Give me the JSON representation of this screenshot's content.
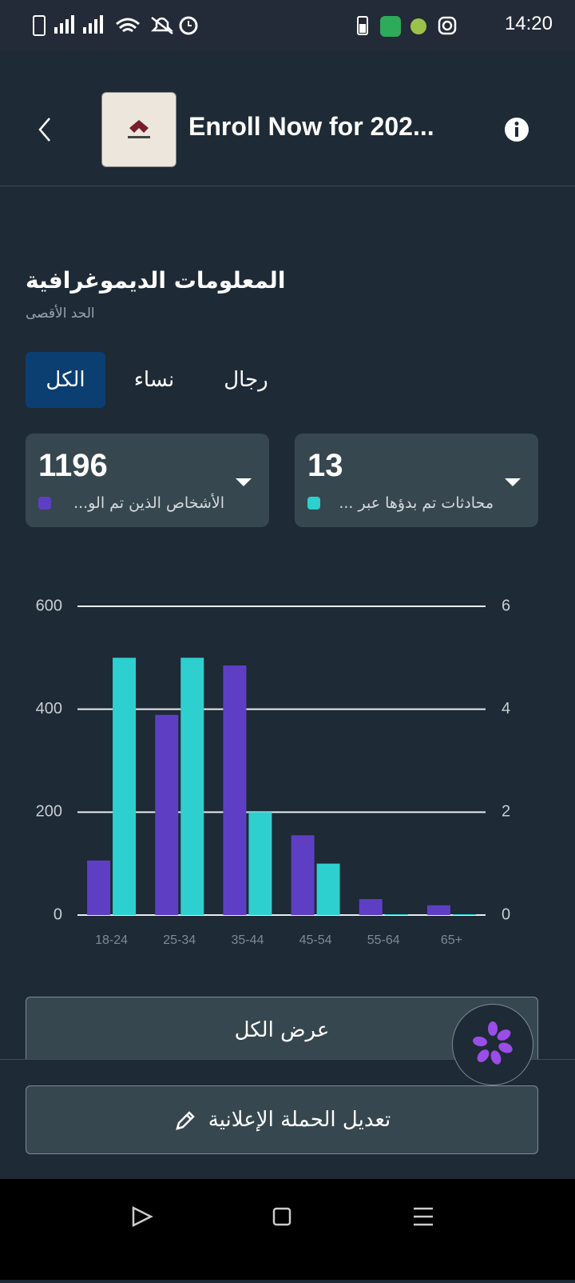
{
  "status_bar": {
    "time": "14:20"
  },
  "header": {
    "title": "Enroll Now for 202..."
  },
  "section": {
    "title": "المعلومات الديموغرافية",
    "subtitle": "الحد الأقصى"
  },
  "tabs": [
    {
      "label": "الكل",
      "selected": true
    },
    {
      "label": "نساء",
      "selected": false
    },
    {
      "label": "رجال",
      "selected": false
    }
  ],
  "metrics": [
    {
      "value": 1196
    },
    {
      "value": 13
    }
  ],
  "chart_data": {
    "type": "bar",
    "categories": [
      "18-24",
      "25-34",
      "35-44",
      "45-54",
      "55-64",
      "65+"
    ],
    "series": [
      {
        "name": "الأشخاص الذين تم الو...",
        "color": "#5e3fc4",
        "axis": "y",
        "values": [
          106,
          389,
          485,
          155,
          31,
          19
        ]
      },
      {
        "name": "محادثات تم بدؤها عبر ...",
        "color": "#2ecfcf",
        "axis": "y2",
        "values": [
          5,
          5,
          2,
          1,
          0,
          0
        ]
      }
    ],
    "ylim": [
      0,
      600
    ],
    "yticks": [
      0,
      200,
      400,
      600
    ],
    "y2lim": [
      0,
      6
    ],
    "y2ticks": [
      0,
      2,
      4,
      6
    ],
    "grid": true
  },
  "buttons": {
    "view_all": "عرض الكل",
    "edit_campaign": "تعديل الحملة الإعلانية"
  }
}
